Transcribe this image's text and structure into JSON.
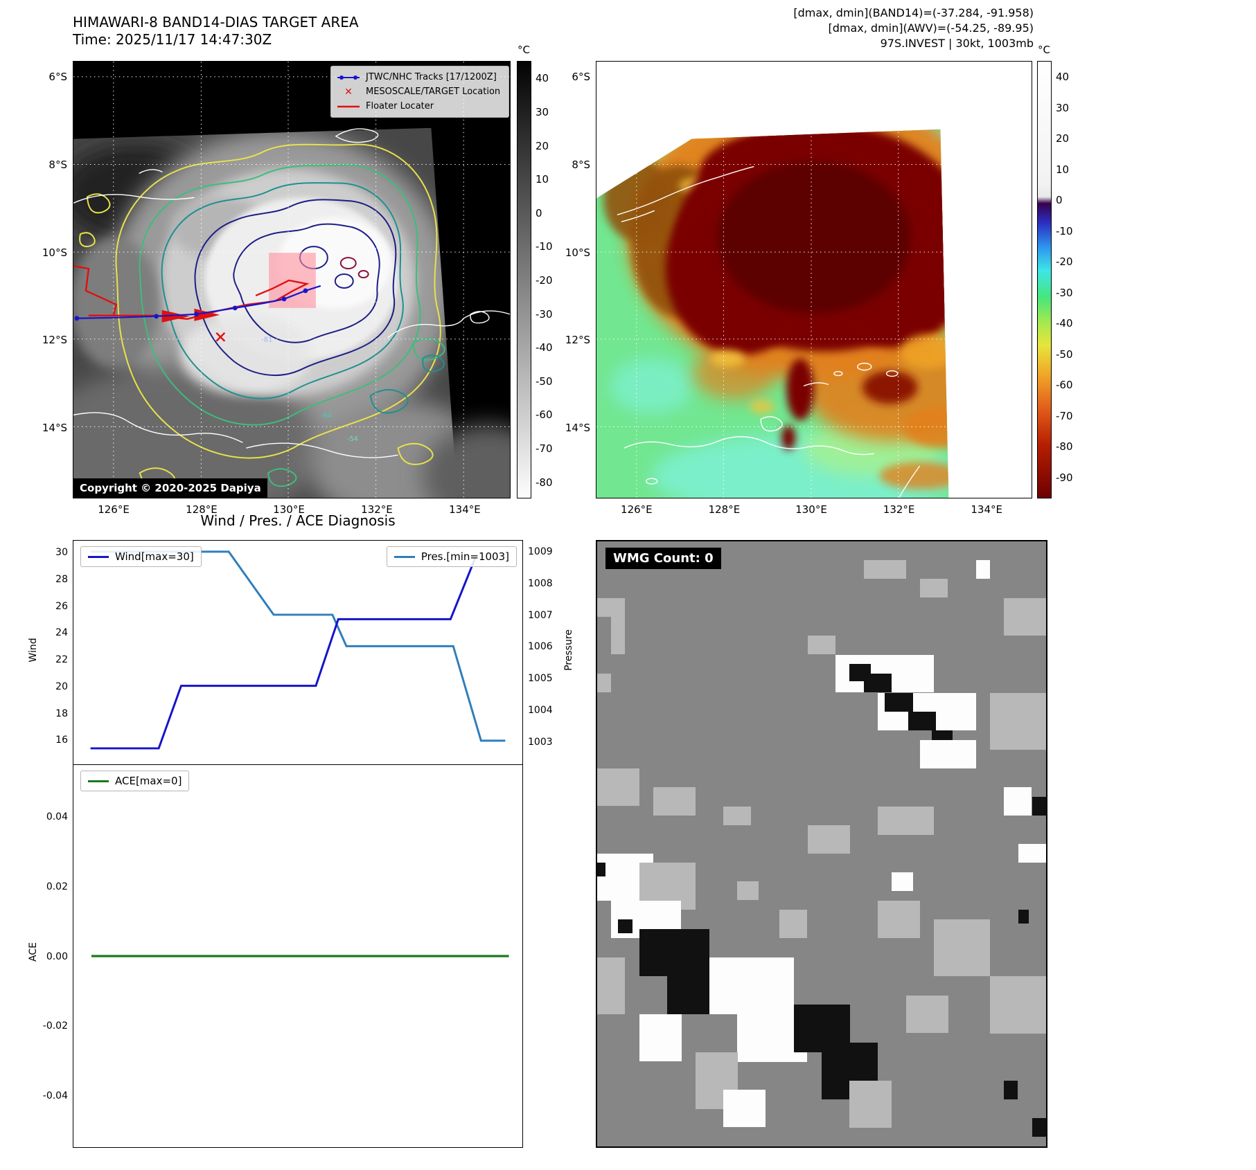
{
  "colors": {
    "background": "#ffffff",
    "track_blue": "#1616cc",
    "floater_red": "#e01010",
    "wind_line": "#1414cc",
    "pressure_line": "#2e7ebc",
    "ace_line": "#1a7a1a",
    "target_box_pink": "#ff8f9e",
    "contour_yellow": "#e8e24a",
    "contour_green": "#3dbd7d",
    "contour_teal": "#1f8f8f",
    "contour_navy": "#1d1d86"
  },
  "panel_band14": {
    "title": "HIMAWARI-8 BAND14-DIAS TARGET AREA",
    "subtitle": "Time: 2025/11/17 14:47:30Z",
    "legend": {
      "track_label": "JTWC/NHC Tracks [17/1200Z]",
      "target_label": "MESOSCALE/TARGET Location",
      "floater_label": "Floater Locater"
    },
    "copyright": "Copyright © 2020-2025 Dapiya",
    "contour_labels": [
      "-81",
      "-64",
      "-54"
    ],
    "colorbar": {
      "unit": "°C",
      "ticks": [
        40,
        30,
        20,
        10,
        0,
        -10,
        -20,
        -30,
        -40,
        -50,
        -60,
        -70,
        -80
      ],
      "range": [
        45,
        -85
      ]
    },
    "lat_ticks": [
      "6°S",
      "8°S",
      "10°S",
      "12°S",
      "14°S"
    ],
    "lon_ticks": [
      "126°E",
      "128°E",
      "130°E",
      "132°E",
      "134°E"
    ]
  },
  "panel_awv": {
    "header_lines": [
      "[dmax, dmin](BAND14)=(-37.284, -91.958)",
      "[dmax, dmin](AWV)=(-54.25, -89.95)",
      "97S.INVEST | 30kt, 1003mb"
    ],
    "colorbar": {
      "unit": "°C",
      "ticks": [
        40,
        30,
        20,
        10,
        0,
        -10,
        -20,
        -30,
        -40,
        -50,
        -60,
        -70,
        -80,
        -90
      ],
      "range": [
        45,
        -97
      ]
    },
    "lat_ticks": [
      "6°S",
      "8°S",
      "10°S",
      "12°S",
      "14°S"
    ],
    "lon_ticks": [
      "126°E",
      "128°E",
      "130°E",
      "132°E",
      "134°E"
    ]
  },
  "diagnosis": {
    "title": "Wind / Pres. / ACE Diagnosis"
  },
  "wmg": {
    "label": "WMG Count: 0",
    "palette": {
      "L": "#b8b8b8",
      "W": "#fdfdfd",
      "K": "#111111",
      "base": "#868686"
    },
    "blocks": [
      [
        0,
        9.4,
        6.2,
        3.1,
        "L"
      ],
      [
        3.1,
        12.5,
        3.1,
        6.2,
        "L"
      ],
      [
        0,
        21.9,
        3.1,
        3.1,
        "L"
      ],
      [
        59.4,
        3.1,
        9.4,
        3.1,
        "L"
      ],
      [
        71.9,
        6.2,
        6.2,
        3.1,
        "L"
      ],
      [
        84.4,
        3.1,
        3.1,
        3.1,
        "W"
      ],
      [
        90.6,
        9.4,
        9.4,
        6.2,
        "L"
      ],
      [
        46.9,
        15.6,
        6.2,
        3.1,
        "L"
      ],
      [
        53.1,
        18.8,
        21.9,
        6.2,
        "W"
      ],
      [
        62.5,
        25,
        21.9,
        6.2,
        "W"
      ],
      [
        56.2,
        20.3,
        4.7,
        2.8,
        "K"
      ],
      [
        59.4,
        21.9,
        6.2,
        3.1,
        "K"
      ],
      [
        64.1,
        25,
        6.2,
        3.1,
        "K"
      ],
      [
        69.3,
        28.1,
        6.2,
        3.1,
        "K"
      ],
      [
        74.5,
        31.2,
        4.7,
        3.1,
        "K"
      ],
      [
        71.9,
        32.8,
        12.5,
        4.7,
        "W"
      ],
      [
        87.5,
        25,
        12.5,
        9.4,
        "L"
      ],
      [
        0,
        37.5,
        9.4,
        6.2,
        "L"
      ],
      [
        12.5,
        40.6,
        9.4,
        4.7,
        "L"
      ],
      [
        28.1,
        43.8,
        6.2,
        3.1,
        "L"
      ],
      [
        46.9,
        46.9,
        9.4,
        4.7,
        "L"
      ],
      [
        62.5,
        43.8,
        12.5,
        4.7,
        "L"
      ],
      [
        90.6,
        40.6,
        6.2,
        4.7,
        "W"
      ],
      [
        96.9,
        42.2,
        3.1,
        3.1,
        "K"
      ],
      [
        93.8,
        50,
        6.2,
        3.1,
        "W"
      ],
      [
        65.6,
        54.7,
        4.7,
        3.1,
        "W"
      ],
      [
        62.5,
        59.4,
        9.4,
        6.2,
        "L"
      ],
      [
        75,
        62.5,
        12.5,
        9.4,
        "L"
      ],
      [
        93.8,
        60.9,
        2.3,
        2.3,
        "K"
      ],
      [
        0,
        51.6,
        12.5,
        7.8,
        "W"
      ],
      [
        0,
        53.1,
        1.8,
        2.3,
        "K"
      ],
      [
        9.4,
        53.1,
        12.5,
        7.8,
        "L"
      ],
      [
        3.1,
        59.4,
        15.6,
        6.2,
        "W"
      ],
      [
        4.7,
        62.5,
        3.1,
        2.3,
        "K"
      ],
      [
        9.4,
        64.1,
        15.6,
        7.8,
        "K"
      ],
      [
        15.6,
        70.3,
        12.5,
        7.8,
        "K"
      ],
      [
        25,
        68.8,
        18.8,
        9.4,
        "W"
      ],
      [
        31.2,
        76.6,
        15.6,
        9.4,
        "W"
      ],
      [
        43.8,
        76.6,
        12.5,
        7.8,
        "K"
      ],
      [
        50,
        82.8,
        12.5,
        9.4,
        "K"
      ],
      [
        0,
        68.8,
        6.2,
        9.4,
        "L"
      ],
      [
        9.4,
        78.1,
        9.4,
        7.8,
        "W"
      ],
      [
        21.9,
        84.4,
        9.4,
        9.4,
        "L"
      ],
      [
        28.1,
        90.6,
        9.4,
        6.2,
        "W"
      ],
      [
        56.2,
        89.1,
        9.4,
        7.8,
        "L"
      ],
      [
        68.8,
        75,
        9.4,
        6.2,
        "L"
      ],
      [
        87.5,
        71.9,
        12.5,
        9.4,
        "L"
      ],
      [
        90.6,
        89.1,
        3.1,
        3.1,
        "K"
      ],
      [
        96.9,
        95.3,
        3.1,
        3.1,
        "K"
      ],
      [
        40.6,
        60.9,
        6.2,
        4.7,
        "L"
      ],
      [
        31.2,
        56.2,
        4.7,
        3.1,
        "L"
      ]
    ]
  },
  "chart_data": [
    {
      "type": "line",
      "title": "Wind / Pres. / ACE Diagnosis",
      "series": [
        {
          "name": "Wind[max=30]",
          "color": "#1414cc",
          "axis": "wind",
          "x": [
            0.038,
            0.19,
            0.24,
            0.54,
            0.59,
            0.84,
            0.895
          ],
          "y": [
            15.3,
            15.3,
            20,
            20,
            25,
            25,
            29.6
          ]
        },
        {
          "name": "Pres.[min=1003]",
          "color": "#2e7ebc",
          "axis": "pressure",
          "x": [
            0.038,
            0.346,
            0.446,
            0.577,
            0.608,
            0.846,
            0.908,
            0.962
          ],
          "y": [
            1009,
            1009,
            1007,
            1007,
            1006,
            1006,
            1003,
            1003
          ]
        }
      ],
      "wind_axis": {
        "label": "Wind",
        "side": "left",
        "ticks": [
          16,
          18,
          20,
          22,
          24,
          26,
          28,
          30
        ],
        "range": [
          14.1,
          30.9
        ]
      },
      "pressure_axis": {
        "label": "Pressure",
        "side": "right",
        "ticks": [
          1003,
          1004,
          1005,
          1006,
          1007,
          1008,
          1009
        ],
        "range": [
          1002.25,
          1009.35
        ]
      },
      "grid": false,
      "legend_positions": [
        "upper-left",
        "upper-right"
      ]
    },
    {
      "type": "line",
      "series": [
        {
          "name": "ACE[max=0]",
          "color": "#1a7a1a",
          "x": [
            0.04,
            0.97
          ],
          "y": [
            0,
            0
          ]
        }
      ],
      "ace_axis": {
        "label": "ACE",
        "side": "left",
        "ticks": [
          -0.04,
          -0.02,
          0,
          0.02,
          0.04
        ],
        "range": [
          -0.055,
          0.055
        ]
      },
      "grid": false,
      "legend_positions": [
        "upper-left"
      ]
    },
    {
      "type": "heatmap",
      "title": "HIMAWARI-8 BAND14-DIAS TARGET AREA",
      "subtitle": "Time: 2025/11/17 14:47:30Z",
      "x_tick_labels": [
        "126°E",
        "128°E",
        "130°E",
        "132°E",
        "134°E"
      ],
      "y_tick_labels": [
        "6°S",
        "8°S",
        "10°S",
        "12°S",
        "14°S"
      ],
      "colorbar_unit": "°C",
      "colorbar_ticks": [
        40,
        30,
        20,
        10,
        0,
        -10,
        -20,
        -30,
        -40,
        -50,
        -60,
        -70,
        -80
      ]
    },
    {
      "type": "heatmap",
      "title": "97S.INVEST | 30kt, 1003mb",
      "x_tick_labels": [
        "126°E",
        "128°E",
        "130°E",
        "132°E",
        "134°E"
      ],
      "y_tick_labels": [
        "6°S",
        "8°S",
        "10°S",
        "12°S",
        "14°S"
      ],
      "colorbar_unit": "°C",
      "colorbar_ticks": [
        40,
        30,
        20,
        10,
        0,
        -10,
        -20,
        -30,
        -40,
        -50,
        -60,
        -70,
        -80,
        -90
      ]
    }
  ]
}
